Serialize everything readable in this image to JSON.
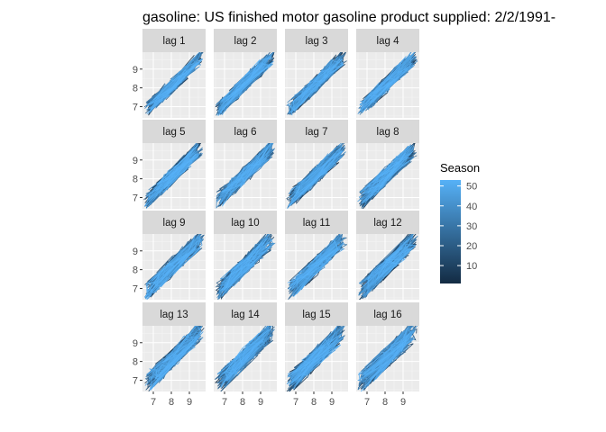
{
  "chart_data": {
    "type": "lag-plot",
    "title": "gasoline: US finished motor gasoline product supplied: 2/2/1991-",
    "facets": [
      "lag 1",
      "lag 2",
      "lag 3",
      "lag 4",
      "lag 5",
      "lag 6",
      "lag 7",
      "lag 8",
      "lag 9",
      "lag 10",
      "lag 11",
      "lag 12",
      "lag 13",
      "lag 14",
      "lag 15",
      "lag 16"
    ],
    "facet_layout": {
      "rows": 4,
      "cols": 4
    },
    "x_ticks": [
      7,
      8,
      9
    ],
    "y_ticks": [
      7,
      8,
      9
    ],
    "xlim": [
      6.4,
      9.9
    ],
    "ylim": [
      6.4,
      9.9
    ],
    "grid": true,
    "series_trend": {
      "x_start": 6.6,
      "x_end": 9.7,
      "y_start": 6.8,
      "y_end": 9.7
    },
    "legend": {
      "title": "Season",
      "ticks": [
        10,
        20,
        30,
        40,
        50
      ],
      "range": [
        1,
        53
      ],
      "low_color": "#132B43",
      "high_color": "#56B1F7",
      "placement": "right"
    },
    "colors": {
      "panel_bg": "#EBEBEB",
      "strip_bg": "#D9D9D9",
      "grid_major": "#FFFFFF"
    }
  }
}
